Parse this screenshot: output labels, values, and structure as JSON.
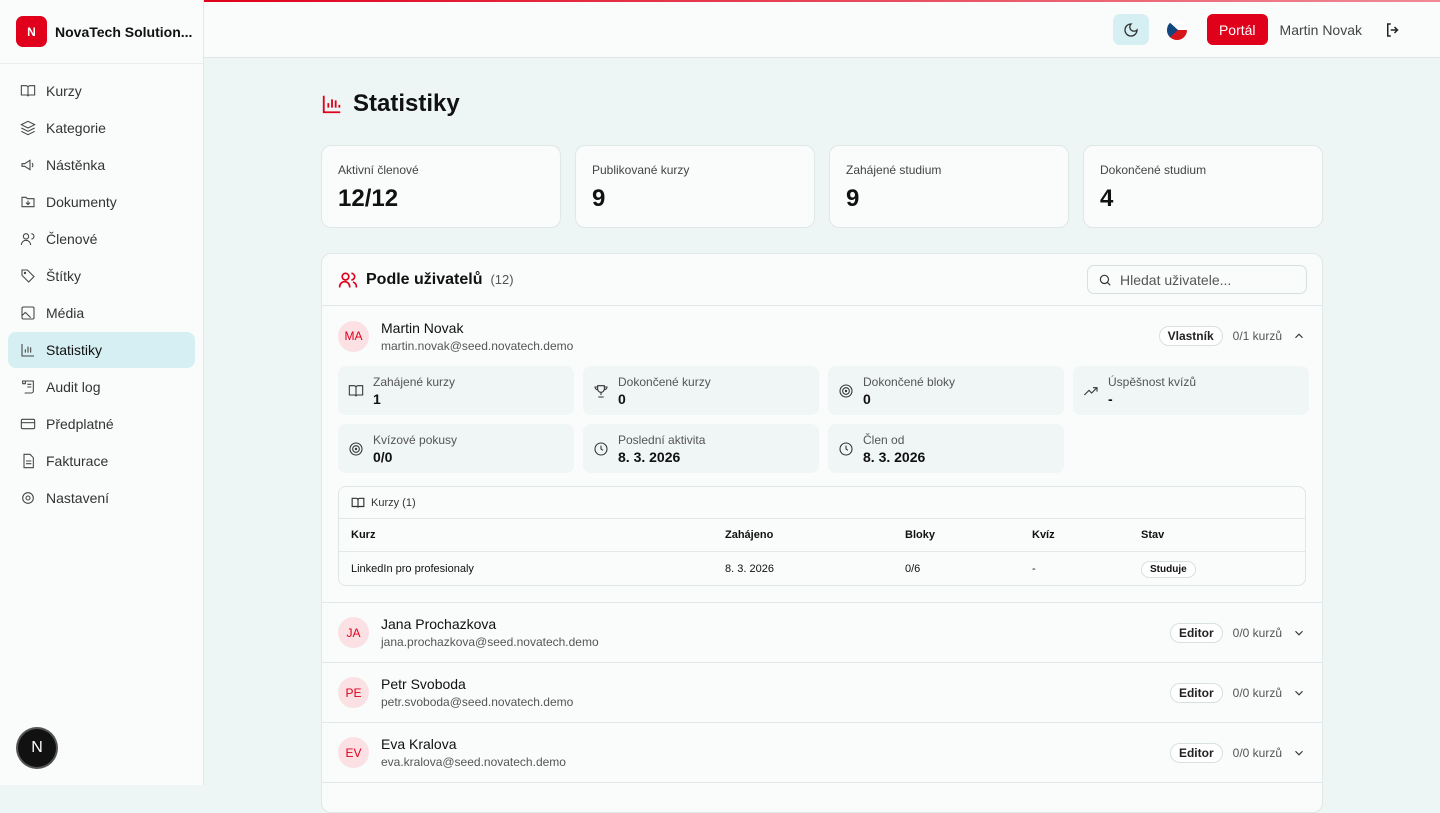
{
  "brand": {
    "logo": "N",
    "name": "NovaTech Solution..."
  },
  "sidebar": {
    "items": [
      {
        "label": "Kurzy",
        "icon": "book-icon"
      },
      {
        "label": "Kategorie",
        "icon": "layers-icon"
      },
      {
        "label": "Nástěnka",
        "icon": "megaphone-icon"
      },
      {
        "label": "Dokumenty",
        "icon": "folder-icon"
      },
      {
        "label": "Členové",
        "icon": "users-icon"
      },
      {
        "label": "Štítky",
        "icon": "tag-icon"
      },
      {
        "label": "Média",
        "icon": "image-icon"
      },
      {
        "label": "Statistiky",
        "icon": "chart-icon",
        "active": true
      },
      {
        "label": "Audit log",
        "icon": "scroll-icon"
      },
      {
        "label": "Předplatné",
        "icon": "card-icon"
      },
      {
        "label": "Fakturace",
        "icon": "file-icon"
      },
      {
        "label": "Nastavení",
        "icon": "gear-icon"
      }
    ],
    "badge": "N"
  },
  "header": {
    "portal": "Portál",
    "user": "Martin Novak"
  },
  "page": {
    "title": "Statistiky"
  },
  "cards": [
    {
      "label": "Aktivní členové",
      "value": "12/12"
    },
    {
      "label": "Publikované kurzy",
      "value": "9"
    },
    {
      "label": "Zahájené studium",
      "value": "9"
    },
    {
      "label": "Dokončené studium",
      "value": "4"
    }
  ],
  "panel": {
    "title": "Podle uživatelů",
    "count": "(12)",
    "search_placeholder": "Hledat uživatele..."
  },
  "expanded": {
    "initials": "MA",
    "name": "Martin Novak",
    "email": "martin.novak@seed.novatech.demo",
    "role": "Vlastník",
    "courses": "0/1 kurzů",
    "stats": [
      {
        "label": "Zahájené kurzy",
        "value": "1"
      },
      {
        "label": "Dokončené kurzy",
        "value": "0"
      },
      {
        "label": "Dokončené bloky",
        "value": "0"
      },
      {
        "label": "Úspěšnost kvízů",
        "value": "-"
      },
      {
        "label": "Kvízové pokusy",
        "value": "0/0"
      },
      {
        "label": "Poslední aktivita",
        "value": "8. 3. 2026"
      },
      {
        "label": "Člen od",
        "value": "8. 3. 2026"
      }
    ],
    "table": {
      "title": "Kurzy (1)",
      "headers": [
        "Kurz",
        "Zahájeno",
        "Bloky",
        "Kvíz",
        "Stav"
      ],
      "rows": [
        [
          "LinkedIn pro profesionaly",
          "8. 3. 2026",
          "0/6",
          "-",
          "Studuje"
        ]
      ]
    }
  },
  "users": [
    {
      "initials": "JA",
      "name": "Jana Prochazkova",
      "email": "jana.prochazkova@seed.novatech.demo",
      "role": "Editor",
      "courses": "0/0 kurzů"
    },
    {
      "initials": "PE",
      "name": "Petr Svoboda",
      "email": "petr.svoboda@seed.novatech.demo",
      "role": "Editor",
      "courses": "0/0 kurzů"
    },
    {
      "initials": "EV",
      "name": "Eva Kralova",
      "email": "eva.kralova@seed.novatech.demo",
      "role": "Editor",
      "courses": "0/0 kurzů"
    }
  ]
}
